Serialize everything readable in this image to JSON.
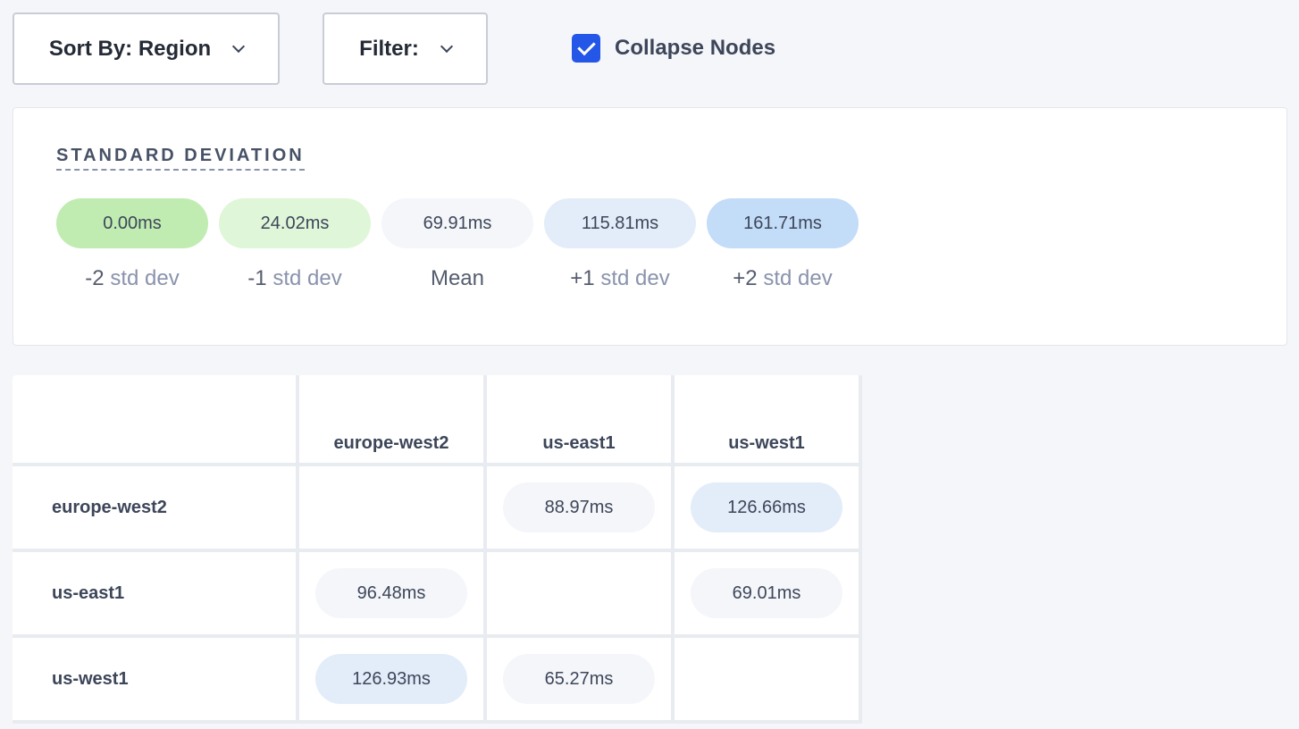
{
  "toolbar": {
    "sort_label": "Sort By: Region",
    "filter_label": "Filter:",
    "collapse_label": "Collapse Nodes",
    "collapse_checked": true
  },
  "std_dev": {
    "title": "STANDARD DEVIATION",
    "items": [
      {
        "value": "0.00ms",
        "sign": "-2",
        "label": "std dev",
        "color": "#c0ecb2"
      },
      {
        "value": "24.02ms",
        "sign": "-1",
        "label": "std dev",
        "color": "#dff6d8"
      },
      {
        "value": "69.91ms",
        "sign": "Mean",
        "label": "",
        "color": "#f4f6fa"
      },
      {
        "value": "115.81ms",
        "sign": "+1",
        "label": "std dev",
        "color": "#e3edf9"
      },
      {
        "value": "161.71ms",
        "sign": "+2",
        "label": "std dev",
        "color": "#c3dcf8"
      }
    ]
  },
  "matrix": {
    "columns": [
      "europe-west2",
      "us-east1",
      "us-west1"
    ],
    "rows": [
      {
        "name": "europe-west2",
        "cells": [
          null,
          {
            "v": "88.97ms",
            "color": "#f4f6fa"
          },
          {
            "v": "126.66ms",
            "color": "#e3edf9"
          }
        ]
      },
      {
        "name": "us-east1",
        "cells": [
          {
            "v": "96.48ms",
            "color": "#f4f6fa"
          },
          null,
          {
            "v": "69.01ms",
            "color": "#f4f6fa"
          }
        ]
      },
      {
        "name": "us-west1",
        "cells": [
          {
            "v": "126.93ms",
            "color": "#e3edf9"
          },
          {
            "v": "65.27ms",
            "color": "#f4f6fa"
          },
          null
        ]
      }
    ]
  }
}
